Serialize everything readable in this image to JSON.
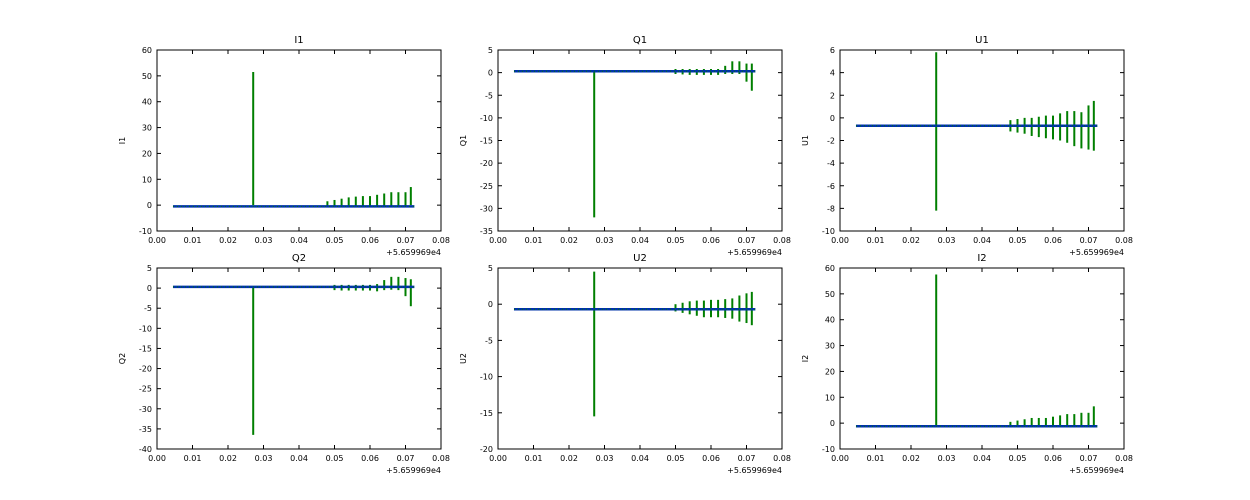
{
  "figure": {
    "background": "#ffffff"
  },
  "colors": {
    "spike": "#007f00",
    "baseline": "#0033aa",
    "axis": "#000000"
  },
  "chart_data": [
    {
      "type": "line",
      "title": "I1",
      "ylabel": "I1",
      "xlabel": "",
      "xlim": [
        0.0,
        0.08
      ],
      "ylim": [
        -10,
        60
      ],
      "xticks": [
        "0.00",
        "0.01",
        "0.02",
        "0.03",
        "0.04",
        "0.05",
        "0.06",
        "0.07",
        "0.08"
      ],
      "yticks": [
        -10,
        0,
        10,
        20,
        30,
        40,
        50,
        60
      ],
      "x_offset_label": "+5.659969e4",
      "grid": false,
      "series": [
        {
          "values": [
            {
              "x": 0.0271,
              "y0": 0,
              "y1": 51.5
            },
            {
              "x": 0.048,
              "y0": -0.5,
              "y1": 1.5
            },
            {
              "x": 0.05,
              "y0": -0.5,
              "y1": 2
            },
            {
              "x": 0.052,
              "y0": -0.5,
              "y1": 2.5
            },
            {
              "x": 0.054,
              "y0": -0.5,
              "y1": 3
            },
            {
              "x": 0.056,
              "y0": -0.5,
              "y1": 3.3
            },
            {
              "x": 0.058,
              "y0": -0.5,
              "y1": 3.5
            },
            {
              "x": 0.06,
              "y0": -0.5,
              "y1": 3.5
            },
            {
              "x": 0.062,
              "y0": -0.5,
              "y1": 4
            },
            {
              "x": 0.064,
              "y0": -0.5,
              "y1": 4.5
            },
            {
              "x": 0.066,
              "y0": -0.5,
              "y1": 5
            },
            {
              "x": 0.068,
              "y0": -0.5,
              "y1": 5
            },
            {
              "x": 0.07,
              "y0": -0.5,
              "y1": 5
            },
            {
              "x": 0.0715,
              "y0": 0,
              "y1": 7
            }
          ]
        },
        {
          "baseline": {
            "x0": 0.0045,
            "x1": 0.0725,
            "y": -0.5
          }
        }
      ]
    },
    {
      "type": "line",
      "title": "Q1",
      "ylabel": "Q1",
      "xlabel": "",
      "xlim": [
        0.0,
        0.08
      ],
      "ylim": [
        -35,
        5
      ],
      "xticks": [
        "0.00",
        "0.01",
        "0.02",
        "0.03",
        "0.04",
        "0.05",
        "0.06",
        "0.07",
        "0.08"
      ],
      "yticks": [
        -35,
        -30,
        -25,
        -20,
        -15,
        -10,
        -5,
        0,
        5
      ],
      "x_offset_label": "+5.659969e4",
      "grid": false,
      "series": [
        {
          "values": [
            {
              "x": 0.0271,
              "y0": 0.3,
              "y1": -32
            },
            {
              "x": 0.05,
              "y0": -0.3,
              "y1": 0.8
            },
            {
              "x": 0.052,
              "y0": -0.4,
              "y1": 0.8
            },
            {
              "x": 0.054,
              "y0": -0.5,
              "y1": 0.8
            },
            {
              "x": 0.056,
              "y0": -0.5,
              "y1": 0.8
            },
            {
              "x": 0.058,
              "y0": -0.5,
              "y1": 0.8
            },
            {
              "x": 0.06,
              "y0": -0.5,
              "y1": 0.8
            },
            {
              "x": 0.062,
              "y0": -0.5,
              "y1": 0.8
            },
            {
              "x": 0.064,
              "y0": -0.3,
              "y1": 1.5
            },
            {
              "x": 0.066,
              "y0": -0.3,
              "y1": 2.5
            },
            {
              "x": 0.068,
              "y0": -0.3,
              "y1": 2.5
            },
            {
              "x": 0.07,
              "y0": -2,
              "y1": 2
            },
            {
              "x": 0.0715,
              "y0": -4,
              "y1": 2
            }
          ]
        },
        {
          "baseline": {
            "x0": 0.0045,
            "x1": 0.0725,
            "y": 0.3
          }
        }
      ]
    },
    {
      "type": "line",
      "title": "U1",
      "ylabel": "U1",
      "xlabel": "",
      "xlim": [
        0.0,
        0.08
      ],
      "ylim": [
        -10,
        6
      ],
      "xticks": [
        "0.00",
        "0.01",
        "0.02",
        "0.03",
        "0.04",
        "0.05",
        "0.06",
        "0.07",
        "0.08"
      ],
      "yticks": [
        -10,
        -8,
        -6,
        -4,
        -2,
        0,
        2,
        4,
        6
      ],
      "x_offset_label": "+5.659969e4",
      "grid": false,
      "series": [
        {
          "values": [
            {
              "x": 0.0271,
              "y0": -8.2,
              "y1": 5.8
            },
            {
              "x": 0.048,
              "y0": -1.2,
              "y1": -0.2
            },
            {
              "x": 0.05,
              "y0": -1.3,
              "y1": -0.1
            },
            {
              "x": 0.052,
              "y0": -1.4,
              "y1": 0
            },
            {
              "x": 0.054,
              "y0": -1.6,
              "y1": 0
            },
            {
              "x": 0.056,
              "y0": -1.7,
              "y1": 0.1
            },
            {
              "x": 0.058,
              "y0": -1.8,
              "y1": 0.2
            },
            {
              "x": 0.06,
              "y0": -1.9,
              "y1": 0.2
            },
            {
              "x": 0.062,
              "y0": -2,
              "y1": 0.4
            },
            {
              "x": 0.064,
              "y0": -2.2,
              "y1": 0.6
            },
            {
              "x": 0.066,
              "y0": -2.5,
              "y1": 0.6
            },
            {
              "x": 0.068,
              "y0": -2.7,
              "y1": 0.5
            },
            {
              "x": 0.07,
              "y0": -2.8,
              "y1": 1.1
            },
            {
              "x": 0.0715,
              "y0": -2.9,
              "y1": 1.5
            }
          ]
        },
        {
          "baseline": {
            "x0": 0.0045,
            "x1": 0.0725,
            "y": -0.7
          }
        }
      ]
    },
    {
      "type": "line",
      "title": "Q2",
      "ylabel": "Q2",
      "xlabel": "",
      "xlim": [
        0.0,
        0.08
      ],
      "ylim": [
        -40,
        5
      ],
      "xticks": [
        "0.00",
        "0.01",
        "0.02",
        "0.03",
        "0.04",
        "0.05",
        "0.06",
        "0.07",
        "0.08"
      ],
      "yticks": [
        -40,
        -35,
        -30,
        -25,
        -20,
        -15,
        -10,
        -5,
        0,
        5
      ],
      "x_offset_label": "+5.659969e4",
      "grid": false,
      "series": [
        {
          "values": [
            {
              "x": 0.0271,
              "y0": 0.3,
              "y1": -36.5
            },
            {
              "x": 0.05,
              "y0": -0.5,
              "y1": 0.8
            },
            {
              "x": 0.052,
              "y0": -0.6,
              "y1": 0.8
            },
            {
              "x": 0.054,
              "y0": -0.6,
              "y1": 0.8
            },
            {
              "x": 0.056,
              "y0": -0.6,
              "y1": 0.8
            },
            {
              "x": 0.058,
              "y0": -0.6,
              "y1": 0.8
            },
            {
              "x": 0.06,
              "y0": -0.6,
              "y1": 0.8
            },
            {
              "x": 0.062,
              "y0": -0.8,
              "y1": 1
            },
            {
              "x": 0.064,
              "y0": -0.5,
              "y1": 2
            },
            {
              "x": 0.066,
              "y0": -0.4,
              "y1": 2.8
            },
            {
              "x": 0.068,
              "y0": -0.5,
              "y1": 2.8
            },
            {
              "x": 0.07,
              "y0": -2,
              "y1": 2.5
            },
            {
              "x": 0.0715,
              "y0": -4.5,
              "y1": 2.2
            }
          ]
        },
        {
          "baseline": {
            "x0": 0.0045,
            "x1": 0.0725,
            "y": 0.3
          }
        }
      ]
    },
    {
      "type": "line",
      "title": "U2",
      "ylabel": "U2",
      "xlabel": "",
      "xlim": [
        0.0,
        0.08
      ],
      "ylim": [
        -20,
        5
      ],
      "xticks": [
        "0.00",
        "0.01",
        "0.02",
        "0.03",
        "0.04",
        "0.05",
        "0.06",
        "0.07",
        "0.08"
      ],
      "yticks": [
        -20,
        -15,
        -10,
        -5,
        0,
        5
      ],
      "x_offset_label": "+5.659969e4",
      "grid": false,
      "series": [
        {
          "values": [
            {
              "x": 0.0271,
              "y0": -15.5,
              "y1": 4.5
            },
            {
              "x": 0.05,
              "y0": -1,
              "y1": 0
            },
            {
              "x": 0.052,
              "y0": -1.2,
              "y1": 0.2
            },
            {
              "x": 0.054,
              "y0": -1.4,
              "y1": 0.4
            },
            {
              "x": 0.056,
              "y0": -1.6,
              "y1": 0.5
            },
            {
              "x": 0.058,
              "y0": -1.8,
              "y1": 0.5
            },
            {
              "x": 0.06,
              "y0": -1.8,
              "y1": 0.6
            },
            {
              "x": 0.062,
              "y0": -1.8,
              "y1": 0.6
            },
            {
              "x": 0.064,
              "y0": -1.9,
              "y1": 0.7
            },
            {
              "x": 0.066,
              "y0": -2,
              "y1": 0.8
            },
            {
              "x": 0.068,
              "y0": -2.4,
              "y1": 1.2
            },
            {
              "x": 0.07,
              "y0": -2.6,
              "y1": 1.5
            },
            {
              "x": 0.0715,
              "y0": -2.9,
              "y1": 1.7
            }
          ]
        },
        {
          "baseline": {
            "x0": 0.0045,
            "x1": 0.0725,
            "y": -0.7
          }
        }
      ]
    },
    {
      "type": "line",
      "title": "I2",
      "ylabel": "I2",
      "xlabel": "",
      "xlim": [
        0.0,
        0.08
      ],
      "ylim": [
        -10,
        60
      ],
      "xticks": [
        "0.00",
        "0.01",
        "0.02",
        "0.03",
        "0.04",
        "0.05",
        "0.06",
        "0.07",
        "0.08"
      ],
      "yticks": [
        -10,
        0,
        10,
        20,
        30,
        40,
        50,
        60
      ],
      "x_offset_label": "+5.659969e4",
      "grid": false,
      "series": [
        {
          "values": [
            {
              "x": 0.0271,
              "y0": -1,
              "y1": 57.5
            },
            {
              "x": 0.048,
              "y0": -1,
              "y1": 0.5
            },
            {
              "x": 0.05,
              "y0": -1,
              "y1": 1
            },
            {
              "x": 0.052,
              "y0": -1,
              "y1": 1.5
            },
            {
              "x": 0.054,
              "y0": -1,
              "y1": 2
            },
            {
              "x": 0.056,
              "y0": -1,
              "y1": 2
            },
            {
              "x": 0.058,
              "y0": -1,
              "y1": 2
            },
            {
              "x": 0.06,
              "y0": -1,
              "y1": 2.5
            },
            {
              "x": 0.062,
              "y0": -1,
              "y1": 3
            },
            {
              "x": 0.064,
              "y0": -1,
              "y1": 3.5
            },
            {
              "x": 0.066,
              "y0": -1,
              "y1": 3.5
            },
            {
              "x": 0.068,
              "y0": -1,
              "y1": 4
            },
            {
              "x": 0.07,
              "y0": -1,
              "y1": 4
            },
            {
              "x": 0.0715,
              "y0": -1,
              "y1": 6.5
            }
          ]
        },
        {
          "baseline": {
            "x0": 0.0045,
            "x1": 0.0725,
            "y": -1.2
          }
        }
      ]
    }
  ]
}
